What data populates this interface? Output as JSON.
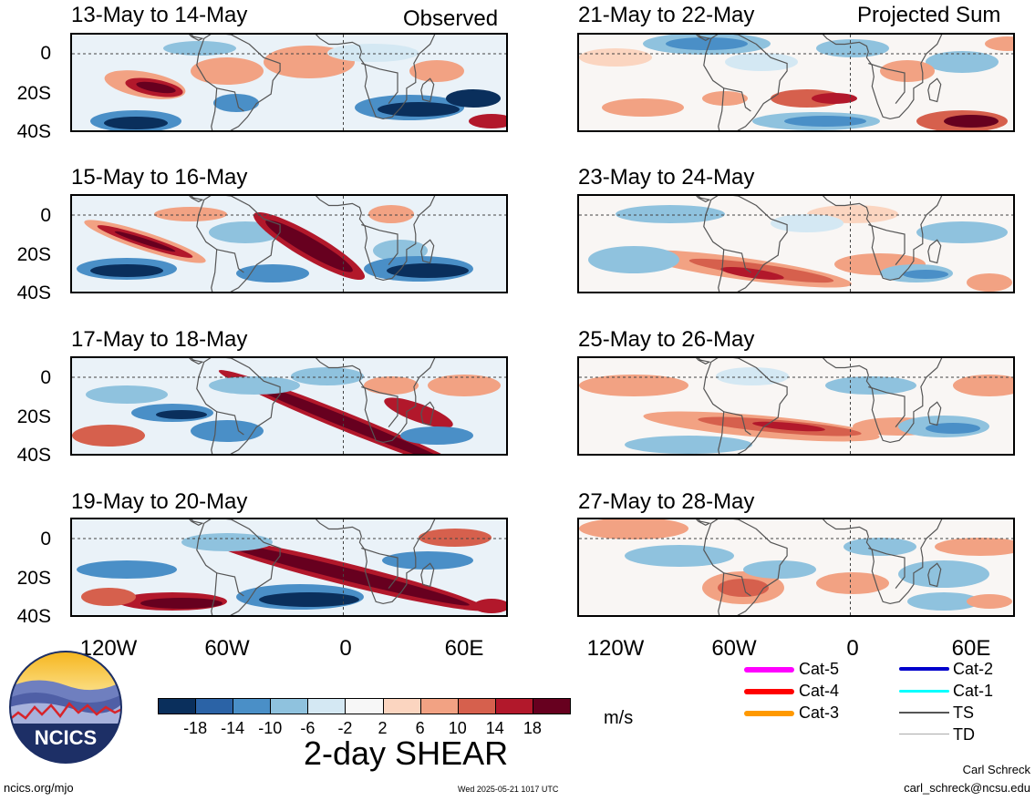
{
  "header": {
    "left_mode": "Observed",
    "right_mode": "Projected Sum"
  },
  "panels": [
    {
      "title": "13-May to 14-May"
    },
    {
      "title": "15-May to 16-May"
    },
    {
      "title": "17-May to 18-May"
    },
    {
      "title": "19-May to 20-May"
    },
    {
      "title": "21-May to 22-May"
    },
    {
      "title": "23-May to 24-May"
    },
    {
      "title": "25-May to 26-May"
    },
    {
      "title": "27-May to 28-May"
    }
  ],
  "axes": {
    "y_ticks": [
      "0",
      "20S",
      "40S"
    ],
    "x_ticks": [
      "120W",
      "60W",
      "0",
      "60E"
    ]
  },
  "colorbar": {
    "ticks": [
      "-18",
      "-14",
      "-10",
      "-6",
      "-2",
      "2",
      "6",
      "10",
      "14",
      "18"
    ],
    "colors": [
      "#0a2f5c",
      "#2b63a6",
      "#4a8fc7",
      "#8fc2de",
      "#d4e8f3",
      "#f7f7f7",
      "#fbd5c0",
      "#f2a283",
      "#d6604d",
      "#b2182b",
      "#67001f"
    ],
    "units": "m/s",
    "title": "2-day SHEAR"
  },
  "storm_legend": {
    "items": [
      {
        "label": "Cat-5",
        "color": "#ff00ff"
      },
      {
        "label": "Cat-4",
        "color": "#ff0000"
      },
      {
        "label": "Cat-3",
        "color": "#ff9900"
      },
      {
        "label": "Cat-2",
        "color": "#0000cc"
      },
      {
        "label": "Cat-1",
        "color": "#00ffff"
      },
      {
        "label": "TS",
        "color": "#555555"
      },
      {
        "label": "TD",
        "color": "#aaaaaa"
      }
    ]
  },
  "logo": {
    "text": "NCICS"
  },
  "footer": {
    "site": "ncics.org/mjo",
    "timestamp": "Wed 2025-05-21 1017 UTC",
    "author": "Carl Schreck",
    "email": "carl_schreck@ncsu.edu"
  }
}
